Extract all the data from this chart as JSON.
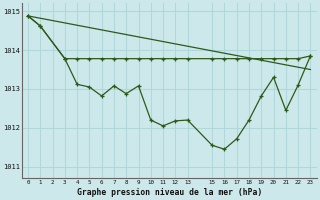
{
  "title": "Graphe pression niveau de la mer (hPa)",
  "background_color": "#cce8ea",
  "grid_color": "#b0d8db",
  "line_color": "#2d5a1b",
  "xlim": [
    -0.5,
    23.5
  ],
  "ylim": [
    1010.7,
    1015.2
  ],
  "yticks": [
    1011,
    1012,
    1013,
    1014,
    1015
  ],
  "xticks": [
    0,
    1,
    2,
    3,
    4,
    5,
    6,
    7,
    8,
    9,
    10,
    11,
    12,
    13,
    15,
    16,
    17,
    18,
    19,
    20,
    21,
    22,
    23
  ],
  "series_diagonal": {
    "x": [
      0,
      23
    ],
    "y": [
      1014.88,
      1013.5
    ]
  },
  "series_flat": {
    "x": [
      0,
      1,
      3,
      4,
      5,
      6,
      7,
      8,
      9,
      10,
      11,
      12,
      13,
      15,
      16,
      17,
      18,
      19,
      20,
      21,
      22,
      23
    ],
    "y": [
      1014.88,
      1014.62,
      1013.78,
      1013.78,
      1013.78,
      1013.78,
      1013.78,
      1013.78,
      1013.78,
      1013.78,
      1013.78,
      1013.78,
      1013.78,
      1013.78,
      1013.78,
      1013.78,
      1013.78,
      1013.78,
      1013.78,
      1013.78,
      1013.78,
      1013.85
    ]
  },
  "series_main": {
    "x": [
      0,
      1,
      3,
      4,
      5,
      6,
      7,
      8,
      9,
      10,
      11,
      12,
      13,
      15,
      16,
      17,
      18,
      19,
      20,
      21,
      22,
      23
    ],
    "y": [
      1014.88,
      1014.62,
      1013.78,
      1013.12,
      1013.05,
      1012.82,
      1013.08,
      1012.88,
      1013.08,
      1012.2,
      1012.05,
      1012.18,
      1012.2,
      1011.55,
      1011.45,
      1011.72,
      1012.2,
      1012.82,
      1013.3,
      1012.45,
      1013.1,
      1013.85
    ]
  }
}
